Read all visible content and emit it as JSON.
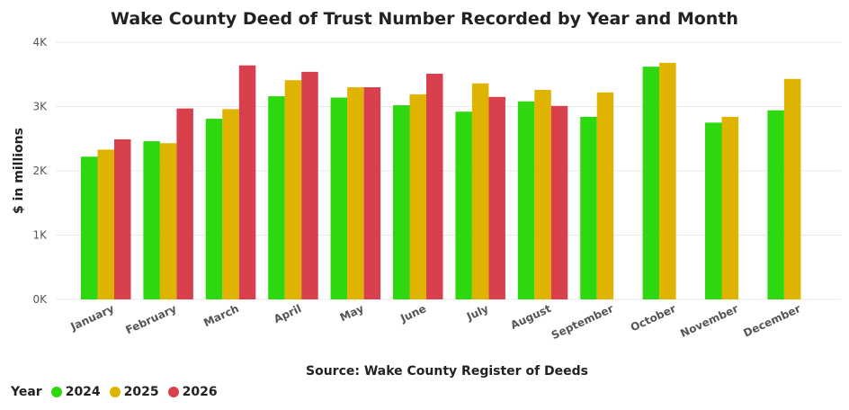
{
  "chart_data": {
    "type": "bar",
    "title": "Wake County Deed of Trust Number Recorded by Year and Month",
    "xlabel": "Source: Wake County Register of Deeds",
    "ylabel": "$ in millions",
    "ylim": [
      0,
      4000
    ],
    "yticks": [
      0,
      1000,
      2000,
      3000,
      4000
    ],
    "ytick_labels": [
      "0K",
      "1K",
      "2K",
      "3K",
      "4K"
    ],
    "grid": true,
    "legend_title": "Year",
    "legend_position": "bottom-left",
    "categories": [
      "January",
      "February",
      "March",
      "April",
      "May",
      "June",
      "July",
      "August",
      "September",
      "October",
      "November",
      "December"
    ],
    "series": [
      {
        "name": "2024",
        "color": "#2ed80e",
        "values": [
          2220,
          2460,
          2810,
          3160,
          3140,
          3020,
          2920,
          3080,
          2840,
          3620,
          2750,
          2940
        ]
      },
      {
        "name": "2025",
        "color": "#dfb400",
        "values": [
          2330,
          2430,
          2960,
          3410,
          3300,
          3190,
          3360,
          3260,
          3220,
          3680,
          2840,
          3430
        ]
      },
      {
        "name": "2026",
        "color": "#d9404e",
        "values": [
          2490,
          2970,
          3640,
          3540,
          3300,
          3510,
          3150,
          3010,
          null,
          null,
          null,
          null
        ]
      }
    ]
  }
}
